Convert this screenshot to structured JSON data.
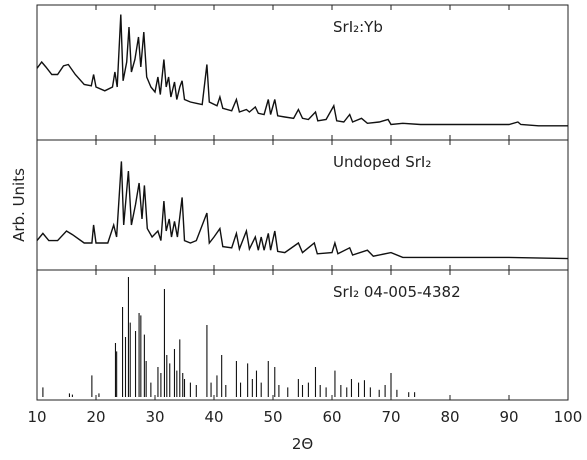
{
  "chart_data": [
    {
      "type": "line",
      "annotation": "SrI₂:Yb",
      "color": "#111111",
      "xlim": [
        10,
        100
      ],
      "ylim": [
        0,
        100
      ],
      "x": [
        10,
        10.8,
        11.5,
        12.5,
        13.5,
        14.5,
        15.3,
        16.5,
        18,
        19.2,
        19.6,
        20,
        21.5,
        22.8,
        23.2,
        23.6,
        24.2,
        24.6,
        25.2,
        25.6,
        26,
        26.6,
        27.2,
        27.6,
        28.1,
        28.6,
        29.3,
        30,
        30.5,
        30.9,
        31.5,
        31.9,
        32.3,
        32.7,
        33.3,
        33.7,
        34.2,
        34.6,
        35,
        36,
        37,
        38,
        38.8,
        39.2,
        40.5,
        41,
        41.5,
        43,
        43.8,
        44.3,
        45.5,
        46,
        47,
        47.5,
        48.5,
        49.2,
        49.6,
        50.3,
        50.8,
        52,
        53.5,
        54.3,
        55,
        56,
        57.2,
        57.6,
        59,
        60.3,
        60.8,
        62,
        63,
        63.5,
        65,
        66,
        68,
        69.5,
        70,
        72,
        75,
        80,
        85,
        90,
        91.5,
        92,
        95,
        100
      ],
      "values": [
        55,
        60,
        56,
        50,
        50,
        57,
        58,
        50,
        42,
        41,
        50,
        40,
        37,
        40,
        52,
        40,
        98,
        45,
        60,
        88,
        52,
        62,
        80,
        56,
        84,
        48,
        40,
        36,
        48,
        34,
        62,
        40,
        48,
        32,
        44,
        30,
        40,
        45,
        30,
        28,
        27,
        26,
        58,
        28,
        25,
        32,
        23,
        21,
        30,
        20,
        22,
        20,
        24,
        19,
        18,
        30,
        18,
        30,
        17,
        16,
        15,
        22,
        15,
        14,
        20,
        13,
        14,
        25,
        13,
        12,
        18,
        12,
        15,
        11,
        12,
        14,
        10,
        11,
        10,
        10,
        10,
        10,
        12,
        10,
        9,
        9
      ]
    },
    {
      "type": "line",
      "annotation": "Undoped SrI₂",
      "ylabel": "Arb. Units",
      "color": "#111111",
      "xlim": [
        10,
        100
      ],
      "ylim": [
        0,
        100
      ],
      "x": [
        10,
        11,
        12,
        13.5,
        15,
        16,
        18,
        19.3,
        19.6,
        20,
        22,
        23,
        23.5,
        24.3,
        24.7,
        25.5,
        26,
        26.7,
        27.3,
        27.8,
        28.2,
        28.7,
        29.5,
        30.5,
        31,
        31.5,
        31.9,
        32.4,
        32.8,
        33.3,
        33.8,
        34.6,
        35,
        36,
        37,
        38.8,
        39.2,
        40,
        41,
        41.5,
        43,
        43.8,
        44.3,
        45.5,
        46,
        47,
        47.5,
        48,
        48.5,
        49.2,
        49.6,
        50.3,
        50.8,
        52,
        54.3,
        55,
        57,
        57.5,
        60,
        60.5,
        61,
        63,
        63.5,
        66,
        67,
        70,
        72,
        80,
        90,
        100
      ],
      "values": [
        22,
        28,
        22,
        22,
        30,
        27,
        20,
        20,
        35,
        20,
        20,
        35,
        25,
        88,
        35,
        80,
        35,
        52,
        70,
        40,
        68,
        32,
        25,
        30,
        22,
        55,
        30,
        40,
        25,
        38,
        25,
        58,
        22,
        20,
        22,
        45,
        20,
        25,
        32,
        17,
        16,
        28,
        15,
        30,
        15,
        25,
        14,
        25,
        14,
        28,
        14,
        30,
        13,
        12,
        20,
        12,
        20,
        11,
        12,
        20,
        11,
        16,
        10,
        14,
        9,
        12,
        8,
        8,
        8,
        7
      ]
    },
    {
      "type": "stem",
      "annotation": "SrI₂ 04-005-4382",
      "xlabel": "2Θ",
      "color": "#111111",
      "xlim": [
        10,
        100
      ],
      "ylim": [
        0,
        100
      ],
      "xticks": [
        10,
        20,
        30,
        40,
        50,
        60,
        70,
        80,
        90,
        100
      ],
      "x": [
        11,
        15.5,
        16,
        19.3,
        20.5,
        23.3,
        23.5,
        24.5,
        25,
        25.5,
        25.8,
        26.7,
        27.3,
        27.6,
        28.2,
        28.5,
        29.3,
        30.5,
        31,
        31.6,
        32,
        32.5,
        33.3,
        33.7,
        34.2,
        34.7,
        35,
        36,
        37,
        38.8,
        39.5,
        40.5,
        41.3,
        42,
        43.8,
        44.5,
        45.7,
        46.5,
        47.2,
        48,
        49.2,
        50.3,
        51,
        52.5,
        54.3,
        55,
        56,
        57.2,
        58,
        59,
        60.5,
        61.5,
        62.5,
        63.3,
        64.5,
        65.5,
        66.5,
        68,
        69,
        70,
        71,
        73,
        74
      ],
      "values": [
        8,
        3,
        2,
        18,
        3,
        45,
        38,
        75,
        50,
        100,
        62,
        55,
        70,
        68,
        52,
        30,
        12,
        25,
        20,
        90,
        35,
        28,
        40,
        22,
        48,
        20,
        15,
        12,
        10,
        60,
        12,
        18,
        35,
        10,
        30,
        12,
        28,
        15,
        22,
        12,
        30,
        25,
        10,
        8,
        15,
        10,
        12,
        25,
        10,
        8,
        22,
        10,
        8,
        15,
        12,
        14,
        8,
        6,
        10,
        20,
        6,
        4,
        4
      ]
    }
  ]
}
